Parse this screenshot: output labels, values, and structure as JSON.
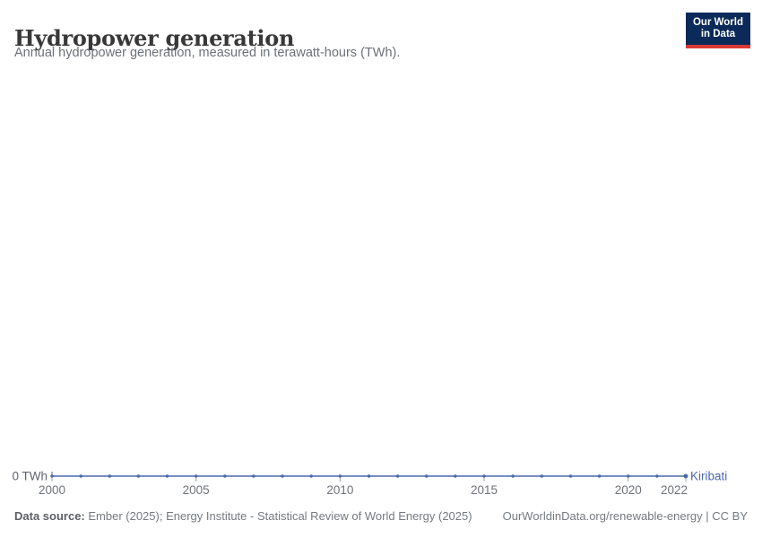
{
  "header": {
    "title": "Hydropower generation",
    "subtitle": "Annual hydropower generation, measured in terawatt-hours (TWh).",
    "logo": {
      "line1": "Our World",
      "line2": "in Data"
    }
  },
  "chart_data": {
    "type": "line",
    "title": "Hydropower generation",
    "subtitle": "Annual hydropower generation, measured in terawatt-hours (TWh).",
    "unit": "TWh",
    "x": [
      2000,
      2001,
      2002,
      2003,
      2004,
      2005,
      2006,
      2007,
      2008,
      2009,
      2010,
      2011,
      2012,
      2013,
      2014,
      2015,
      2016,
      2017,
      2018,
      2019,
      2020,
      2021,
      2022
    ],
    "series": [
      {
        "name": "Kiribati",
        "values": [
          0,
          0,
          0,
          0,
          0,
          0,
          0,
          0,
          0,
          0,
          0,
          0,
          0,
          0,
          0,
          0,
          0,
          0,
          0,
          0,
          0,
          0,
          0
        ]
      }
    ],
    "x_ticks": [
      2000,
      2005,
      2010,
      2015,
      2020,
      2022
    ],
    "xlim": [
      2000,
      2022
    ],
    "ylim": [
      0,
      0
    ],
    "y_axis_label": "0 TWh",
    "grid": false,
    "legend_position": "end-of-line"
  },
  "footer": {
    "source_label": "Data source:",
    "source_text": " Ember (2025); Energy Institute - Statistical Review of World Energy (2025)",
    "link_text": "OurWorldinData.org/renewable-energy | CC BY"
  },
  "colors": {
    "line": "#4a69a8",
    "axis_text": "#6e7278",
    "y_label_text": "#5f646c",
    "tick": "#9aa3b2",
    "zero_tick": "#5b6b8c",
    "logo_bg": "#0b2a59",
    "logo_bar": "#d93a34"
  }
}
